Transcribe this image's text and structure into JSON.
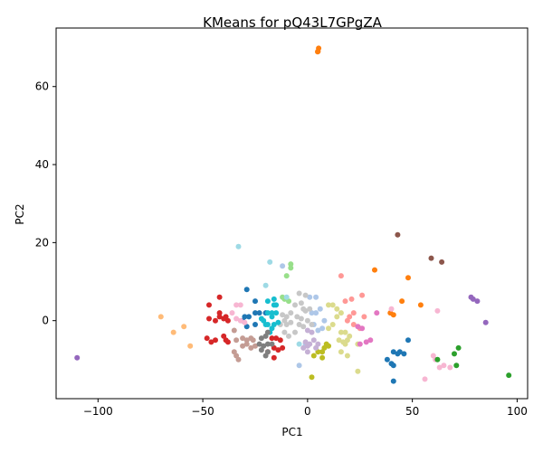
{
  "chart_data": {
    "type": "scatter",
    "title": "KMeans for pQ43L7GPgZA",
    "xlabel": "PC1",
    "ylabel": "PC2",
    "xlim": [
      -120,
      105
    ],
    "ylim": [
      -20,
      75
    ],
    "xticks": [
      -100,
      -50,
      0,
      50,
      100
    ],
    "yticks": [
      0,
      20,
      40,
      60
    ],
    "grid": false,
    "clusters": [
      {
        "color": "#ff7f0e",
        "points": [
          [
            5,
            69
          ],
          [
            5.3,
            69.8
          ],
          [
            4.8,
            68.9
          ],
          [
            32,
            13
          ],
          [
            48,
            11
          ],
          [
            54,
            4
          ],
          [
            45,
            5
          ],
          [
            39.5,
            2
          ],
          [
            41,
            1.5
          ]
        ]
      },
      {
        "color": "#8c564b",
        "points": [
          [
            43,
            22
          ],
          [
            59,
            16
          ],
          [
            64,
            15
          ]
        ]
      },
      {
        "color": "#aec7e8",
        "points": [
          [
            -12,
            14
          ],
          [
            1,
            6
          ],
          [
            4,
            6
          ],
          [
            2,
            2
          ],
          [
            4,
            2
          ],
          [
            6,
            3
          ],
          [
            8,
            0
          ],
          [
            5,
            -2.5
          ],
          [
            7,
            -2
          ],
          [
            3,
            -1
          ],
          [
            -4,
            -11.5
          ],
          [
            -1,
            -6
          ]
        ]
      },
      {
        "color": "#98df8a",
        "points": [
          [
            -8,
            14.5
          ],
          [
            -8,
            13.5
          ],
          [
            -10,
            11.5
          ],
          [
            -12,
            6
          ],
          [
            -9,
            5
          ],
          [
            -11,
            5.5
          ]
        ]
      },
      {
        "color": "#9edae5",
        "points": [
          [
            -33,
            19
          ],
          [
            -18,
            15
          ],
          [
            -20,
            9
          ],
          [
            -10,
            6
          ],
          [
            -4,
            -6
          ]
        ]
      },
      {
        "color": "#ff9896",
        "points": [
          [
            16,
            11.5
          ],
          [
            18,
            5
          ],
          [
            21,
            5.5
          ],
          [
            26,
            6.5
          ],
          [
            20,
            1
          ],
          [
            22,
            2
          ],
          [
            19,
            0
          ],
          [
            27,
            1
          ],
          [
            25,
            -2
          ],
          [
            22,
            -1
          ]
        ]
      },
      {
        "color": "#c7c7c7",
        "points": [
          [
            -4,
            7
          ],
          [
            -1,
            6.5
          ],
          [
            -6,
            4
          ],
          [
            -3,
            4.5
          ],
          [
            -8,
            2
          ],
          [
            -5,
            1
          ],
          [
            -3,
            0.5
          ],
          [
            -1,
            2.5
          ],
          [
            -8,
            -0.5
          ],
          [
            -11,
            0
          ],
          [
            -12,
            1.5
          ],
          [
            -10,
            -1
          ],
          [
            -4,
            -1
          ],
          [
            -2,
            -1.5
          ],
          [
            0,
            0
          ],
          [
            -6,
            -3
          ],
          [
            -9,
            -4
          ],
          [
            -11,
            -3
          ],
          [
            -13,
            -1
          ],
          [
            -10,
            1
          ],
          [
            1,
            3
          ],
          [
            -2,
            3
          ],
          [
            2,
            -1
          ]
        ]
      },
      {
        "color": "#d62728",
        "points": [
          [
            -47,
            4
          ],
          [
            -42,
            6
          ],
          [
            -47,
            0.5
          ],
          [
            -44,
            0
          ],
          [
            -42,
            2
          ],
          [
            -42,
            1
          ],
          [
            -40,
            0.5
          ],
          [
            -38,
            0
          ],
          [
            -39,
            1
          ],
          [
            -40,
            -4
          ],
          [
            -39,
            -5
          ],
          [
            -38,
            -5.5
          ],
          [
            -44,
            -5
          ],
          [
            -46,
            -5.5
          ],
          [
            -48,
            -4.5
          ],
          [
            -17,
            -4.5
          ],
          [
            -15,
            -4.5
          ],
          [
            -13,
            -5
          ],
          [
            -16,
            -7
          ],
          [
            -14,
            -7.5
          ],
          [
            -12,
            -7
          ],
          [
            -19,
            -8
          ],
          [
            -16,
            -9.5
          ]
        ]
      },
      {
        "color": "#1f77b4",
        "points": [
          [
            -29,
            8
          ],
          [
            -25,
            5
          ],
          [
            -25,
            2
          ],
          [
            -23,
            2
          ],
          [
            -20,
            2
          ],
          [
            -30,
            1
          ],
          [
            -28,
            1
          ],
          [
            -31,
            0
          ],
          [
            -29,
            -1.5
          ],
          [
            -25,
            -1
          ],
          [
            48,
            -5
          ],
          [
            38,
            -10
          ],
          [
            40,
            -11
          ],
          [
            41,
            -11.5
          ],
          [
            41,
            -8
          ],
          [
            43,
            -8.5
          ],
          [
            44,
            -8
          ],
          [
            46,
            -8.5
          ],
          [
            41,
            -15.5
          ]
        ]
      },
      {
        "color": "#17becf",
        "points": [
          [
            -19,
            5
          ],
          [
            -16,
            5.5
          ],
          [
            -16,
            4
          ],
          [
            -15,
            4
          ],
          [
            -19,
            2
          ],
          [
            -17,
            2
          ],
          [
            -15,
            2
          ],
          [
            -17,
            1
          ],
          [
            -22,
            0.5
          ],
          [
            -21,
            0
          ],
          [
            -20,
            -1
          ],
          [
            -19,
            -1
          ],
          [
            -16,
            -1
          ],
          [
            -14,
            -0.5
          ],
          [
            -17,
            -2
          ],
          [
            -18,
            -3
          ]
        ]
      },
      {
        "color": "#f7b6d2",
        "points": [
          [
            -34,
            4
          ],
          [
            -32,
            4
          ],
          [
            -34,
            0.5
          ],
          [
            -32,
            0
          ],
          [
            -30,
            -0.5
          ],
          [
            -36,
            2
          ],
          [
            40,
            3
          ],
          [
            62,
            2.5
          ],
          [
            60,
            -9
          ],
          [
            61,
            -10
          ],
          [
            65,
            -11.5
          ],
          [
            63,
            -12
          ],
          [
            68,
            -12
          ],
          [
            56,
            -15
          ]
        ]
      },
      {
        "color": "#c49c94",
        "points": [
          [
            -35,
            -2.5
          ],
          [
            -34,
            -5
          ],
          [
            -31,
            -4.5
          ],
          [
            -29,
            -5
          ],
          [
            -27,
            -4.5
          ],
          [
            -26,
            -5
          ],
          [
            -25,
            -6.5
          ],
          [
            -27,
            -7
          ],
          [
            -29,
            -6
          ],
          [
            -31,
            -6.5
          ],
          [
            -35,
            -8
          ],
          [
            -34,
            -9
          ],
          [
            -33,
            -10
          ]
        ]
      },
      {
        "color": "#7f7f7f",
        "points": [
          [
            -22,
            -4.5
          ],
          [
            -20,
            -4
          ],
          [
            -23,
            -6
          ],
          [
            -21,
            -6.5
          ],
          [
            -19,
            -6
          ],
          [
            -17,
            -6
          ],
          [
            -22,
            -7.5
          ],
          [
            -19,
            -8
          ],
          [
            -20,
            -9
          ],
          [
            -19,
            -3
          ]
        ]
      },
      {
        "color": "#dbdb8d",
        "points": [
          [
            10,
            4
          ],
          [
            12,
            4
          ],
          [
            14,
            3
          ],
          [
            16,
            2
          ],
          [
            14,
            1
          ],
          [
            12,
            -1
          ],
          [
            10,
            -2
          ],
          [
            16,
            -3
          ],
          [
            18,
            -3
          ],
          [
            15,
            -5
          ],
          [
            17,
            -5.5
          ],
          [
            19,
            -5
          ],
          [
            20,
            -4
          ],
          [
            18,
            -6
          ],
          [
            24,
            -6
          ],
          [
            16,
            -8
          ],
          [
            19,
            -9
          ],
          [
            24,
            -13
          ]
        ]
      },
      {
        "color": "#bcbd22",
        "points": [
          [
            9,
            -6
          ],
          [
            10,
            -6.5
          ],
          [
            8,
            -7
          ],
          [
            7,
            -8
          ],
          [
            5,
            -8
          ],
          [
            3,
            -9
          ],
          [
            7,
            -9.5
          ],
          [
            2,
            -14.5
          ]
        ]
      },
      {
        "color": "#c5b0d5",
        "points": [
          [
            0,
            -2.5
          ],
          [
            2,
            -3
          ],
          [
            3,
            -5
          ],
          [
            1,
            -6
          ],
          [
            -1,
            -5.5
          ],
          [
            0,
            -6.5
          ],
          [
            4,
            -7
          ],
          [
            5,
            -6
          ],
          [
            -2,
            -7
          ],
          [
            0,
            -8
          ]
        ]
      },
      {
        "color": "#e377c2",
        "points": [
          [
            24,
            -1.5
          ],
          [
            26,
            -2
          ],
          [
            33,
            2
          ],
          [
            30,
            -5
          ],
          [
            28,
            -5.5
          ],
          [
            25,
            -6
          ]
        ]
      },
      {
        "color": "#ffbb78",
        "points": [
          [
            -70,
            1
          ],
          [
            -59,
            -1.5
          ],
          [
            -64,
            -3
          ],
          [
            -56,
            -6.5
          ]
        ]
      },
      {
        "color": "#9467bd",
        "points": [
          [
            -110,
            -9.5
          ],
          [
            78,
            6
          ],
          [
            79,
            5.5
          ],
          [
            81,
            5
          ],
          [
            85,
            -0.5
          ]
        ]
      },
      {
        "color": "#2ca02c",
        "points": [
          [
            72,
            -7
          ],
          [
            70,
            -8.5
          ],
          [
            62,
            -10
          ],
          [
            71,
            -11.5
          ],
          [
            96,
            -14
          ]
        ]
      }
    ]
  }
}
